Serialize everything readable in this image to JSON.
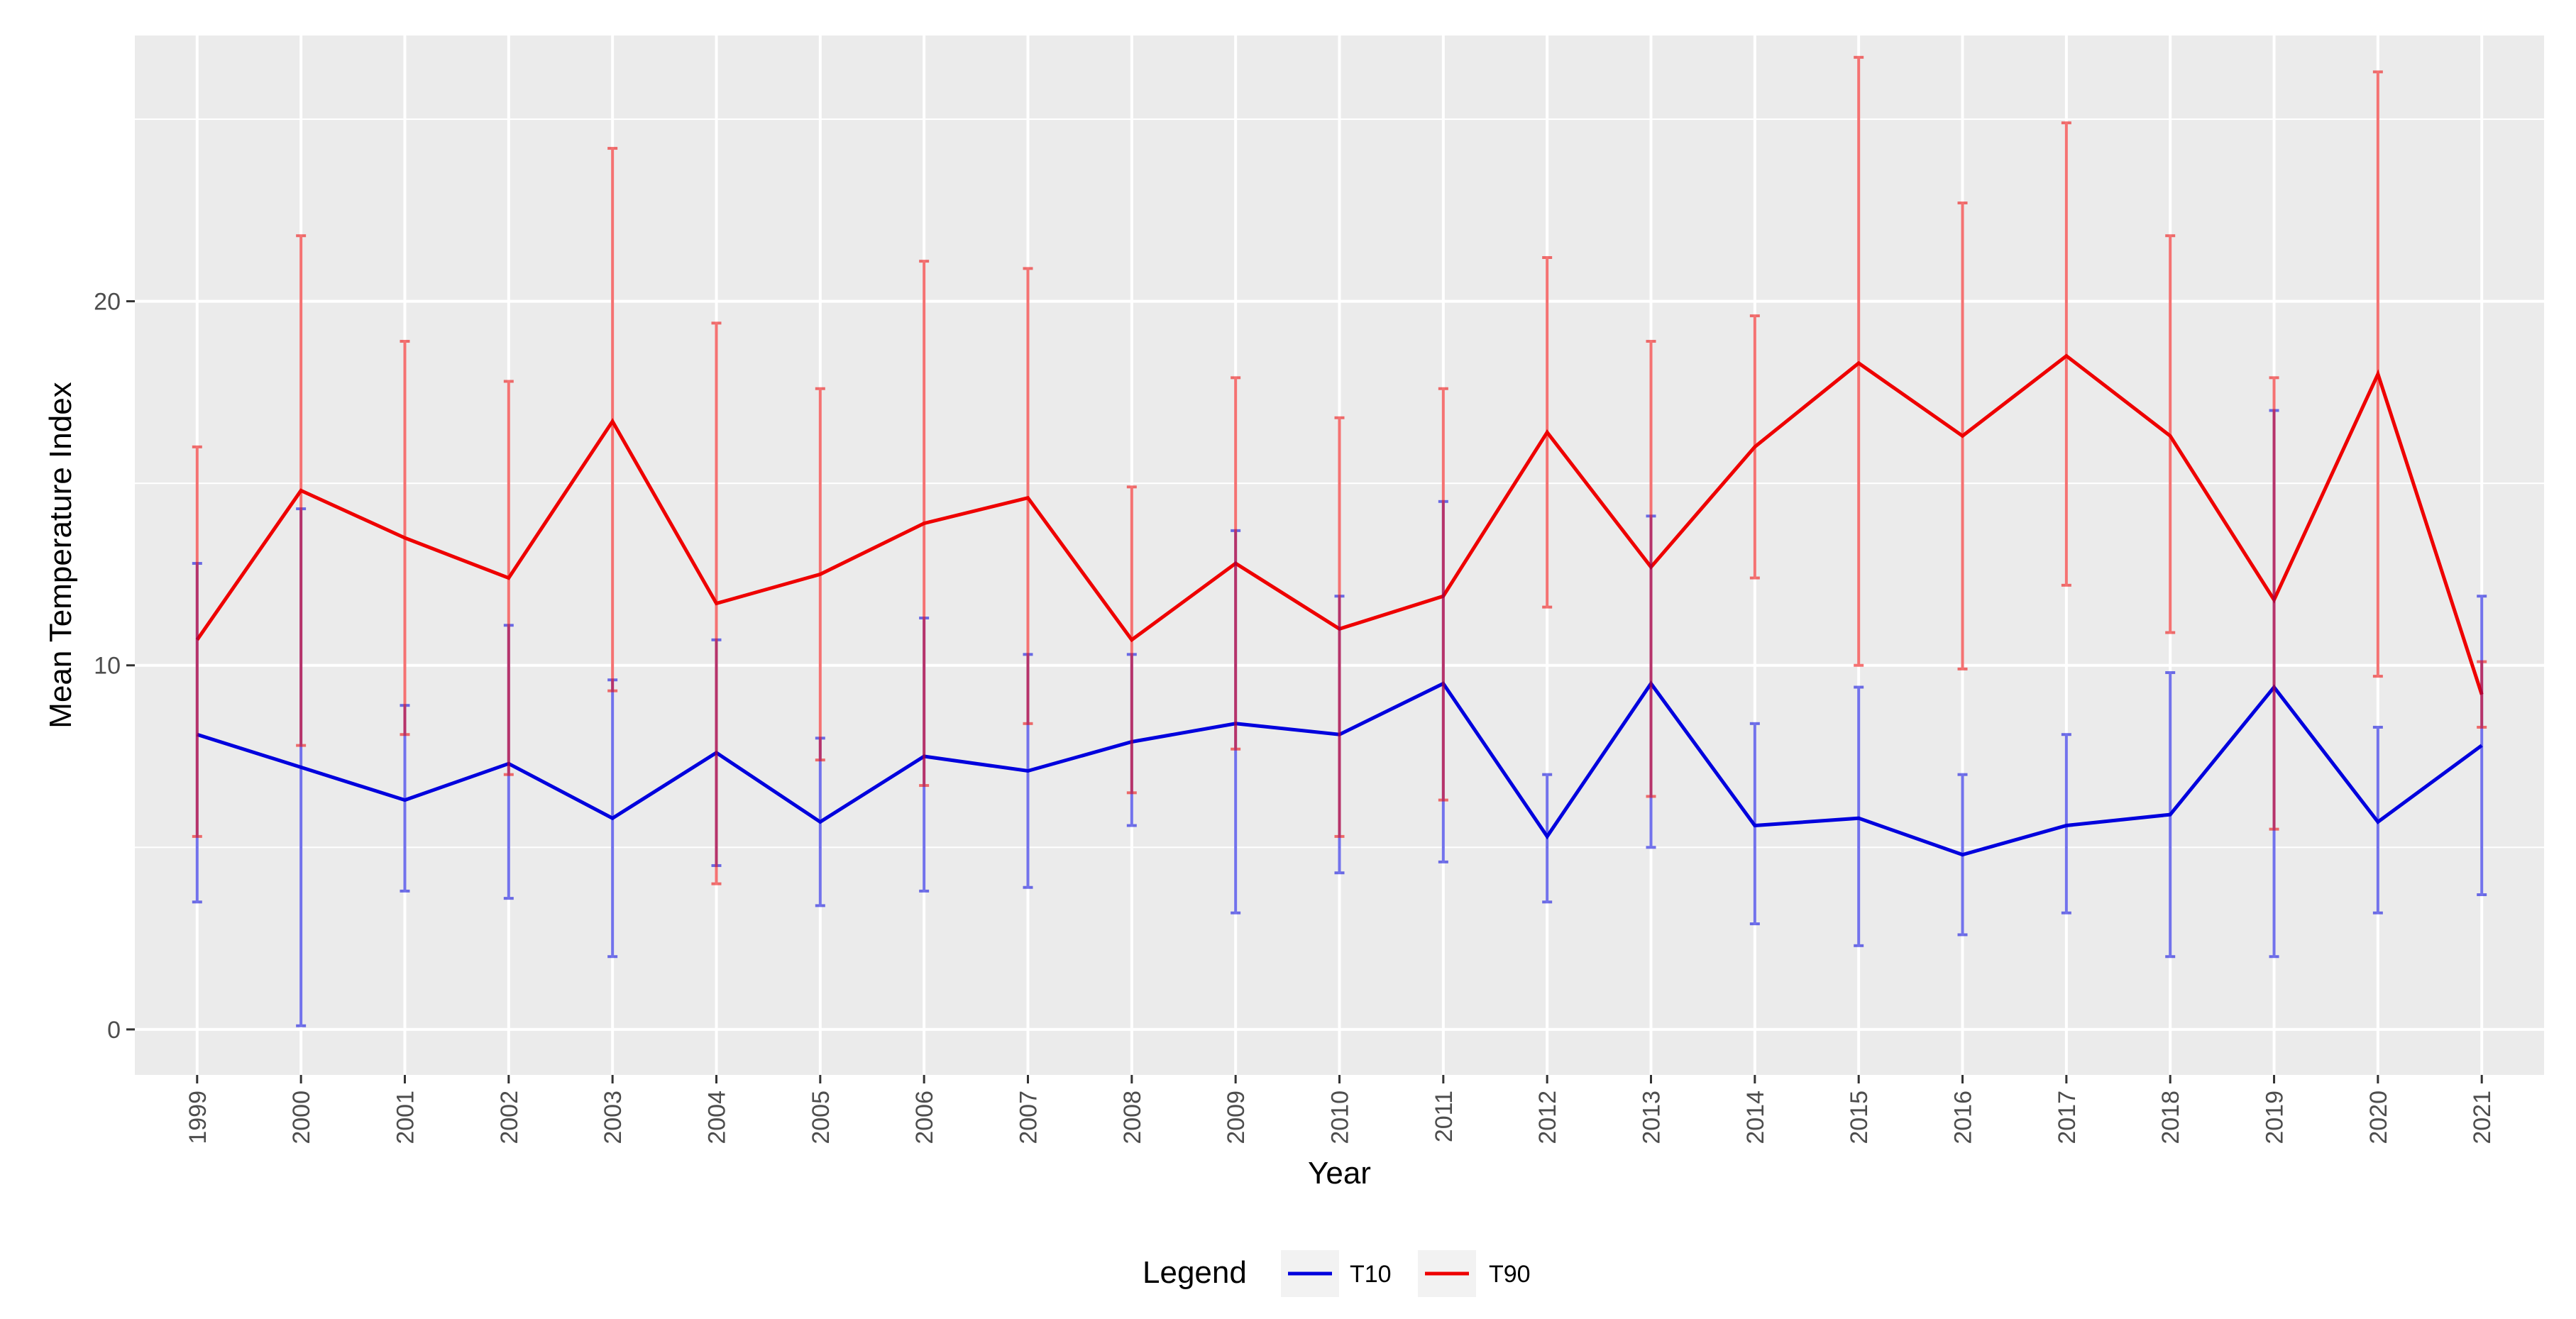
{
  "chart_data": {
    "type": "line",
    "xlabel": "Year",
    "ylabel": "Mean Temperature Index",
    "ylim": [
      -1.25,
      27.3
    ],
    "y_ticks": [
      0,
      10,
      20
    ],
    "y_tick_labels": [
      "0",
      "10",
      "20"
    ],
    "grid": true,
    "legend": {
      "title": "Legend",
      "position": "bottom"
    },
    "categories": [
      "1999",
      "2000",
      "2001",
      "2002",
      "2003",
      "2004",
      "2005",
      "2006",
      "2007",
      "2008",
      "2009",
      "2010",
      "2011",
      "2012",
      "2013",
      "2014",
      "2015",
      "2016",
      "2017",
      "2018",
      "2019",
      "2020",
      "2021"
    ],
    "series": [
      {
        "name": "T10",
        "color": "#0000dd",
        "values": [
          8.1,
          7.2,
          6.3,
          7.3,
          5.8,
          7.6,
          5.7,
          7.5,
          7.1,
          7.9,
          8.4,
          8.1,
          9.5,
          5.3,
          9.5,
          5.6,
          5.8,
          4.8,
          5.6,
          5.9,
          9.4,
          5.7,
          7.8
        ],
        "lower": [
          3.5,
          0.1,
          3.8,
          3.6,
          2.0,
          4.5,
          3.4,
          3.8,
          3.9,
          5.6,
          3.2,
          4.3,
          4.6,
          3.5,
          5.0,
          2.9,
          2.3,
          2.6,
          3.2,
          2.0,
          2.0,
          3.2,
          3.7
        ],
        "upper": [
          12.8,
          14.3,
          8.9,
          11.1,
          9.6,
          10.7,
          8.0,
          11.3,
          10.3,
          10.3,
          13.7,
          11.9,
          14.5,
          7.0,
          14.1,
          8.4,
          9.4,
          7.0,
          8.1,
          9.8,
          17.0,
          8.3,
          11.9
        ]
      },
      {
        "name": "T90",
        "color": "#ee0000",
        "values": [
          10.7,
          14.8,
          13.5,
          12.4,
          16.7,
          11.7,
          12.5,
          13.9,
          14.6,
          10.7,
          12.8,
          11.0,
          11.9,
          16.4,
          12.7,
          16.0,
          18.3,
          16.3,
          18.5,
          16.3,
          11.8,
          18.0,
          9.2
        ],
        "lower": [
          5.3,
          7.8,
          8.1,
          7.0,
          9.3,
          4.0,
          7.4,
          6.7,
          8.4,
          6.5,
          7.7,
          5.3,
          6.3,
          11.6,
          6.4,
          12.4,
          10.0,
          9.9,
          12.2,
          10.9,
          5.5,
          9.7,
          8.3
        ],
        "upper": [
          16.0,
          21.8,
          18.9,
          17.8,
          24.2,
          19.4,
          17.6,
          21.1,
          20.9,
          14.9,
          17.9,
          16.8,
          17.6,
          21.2,
          18.9,
          19.6,
          26.7,
          22.7,
          24.9,
          21.8,
          17.9,
          26.3,
          10.1
        ]
      }
    ]
  }
}
